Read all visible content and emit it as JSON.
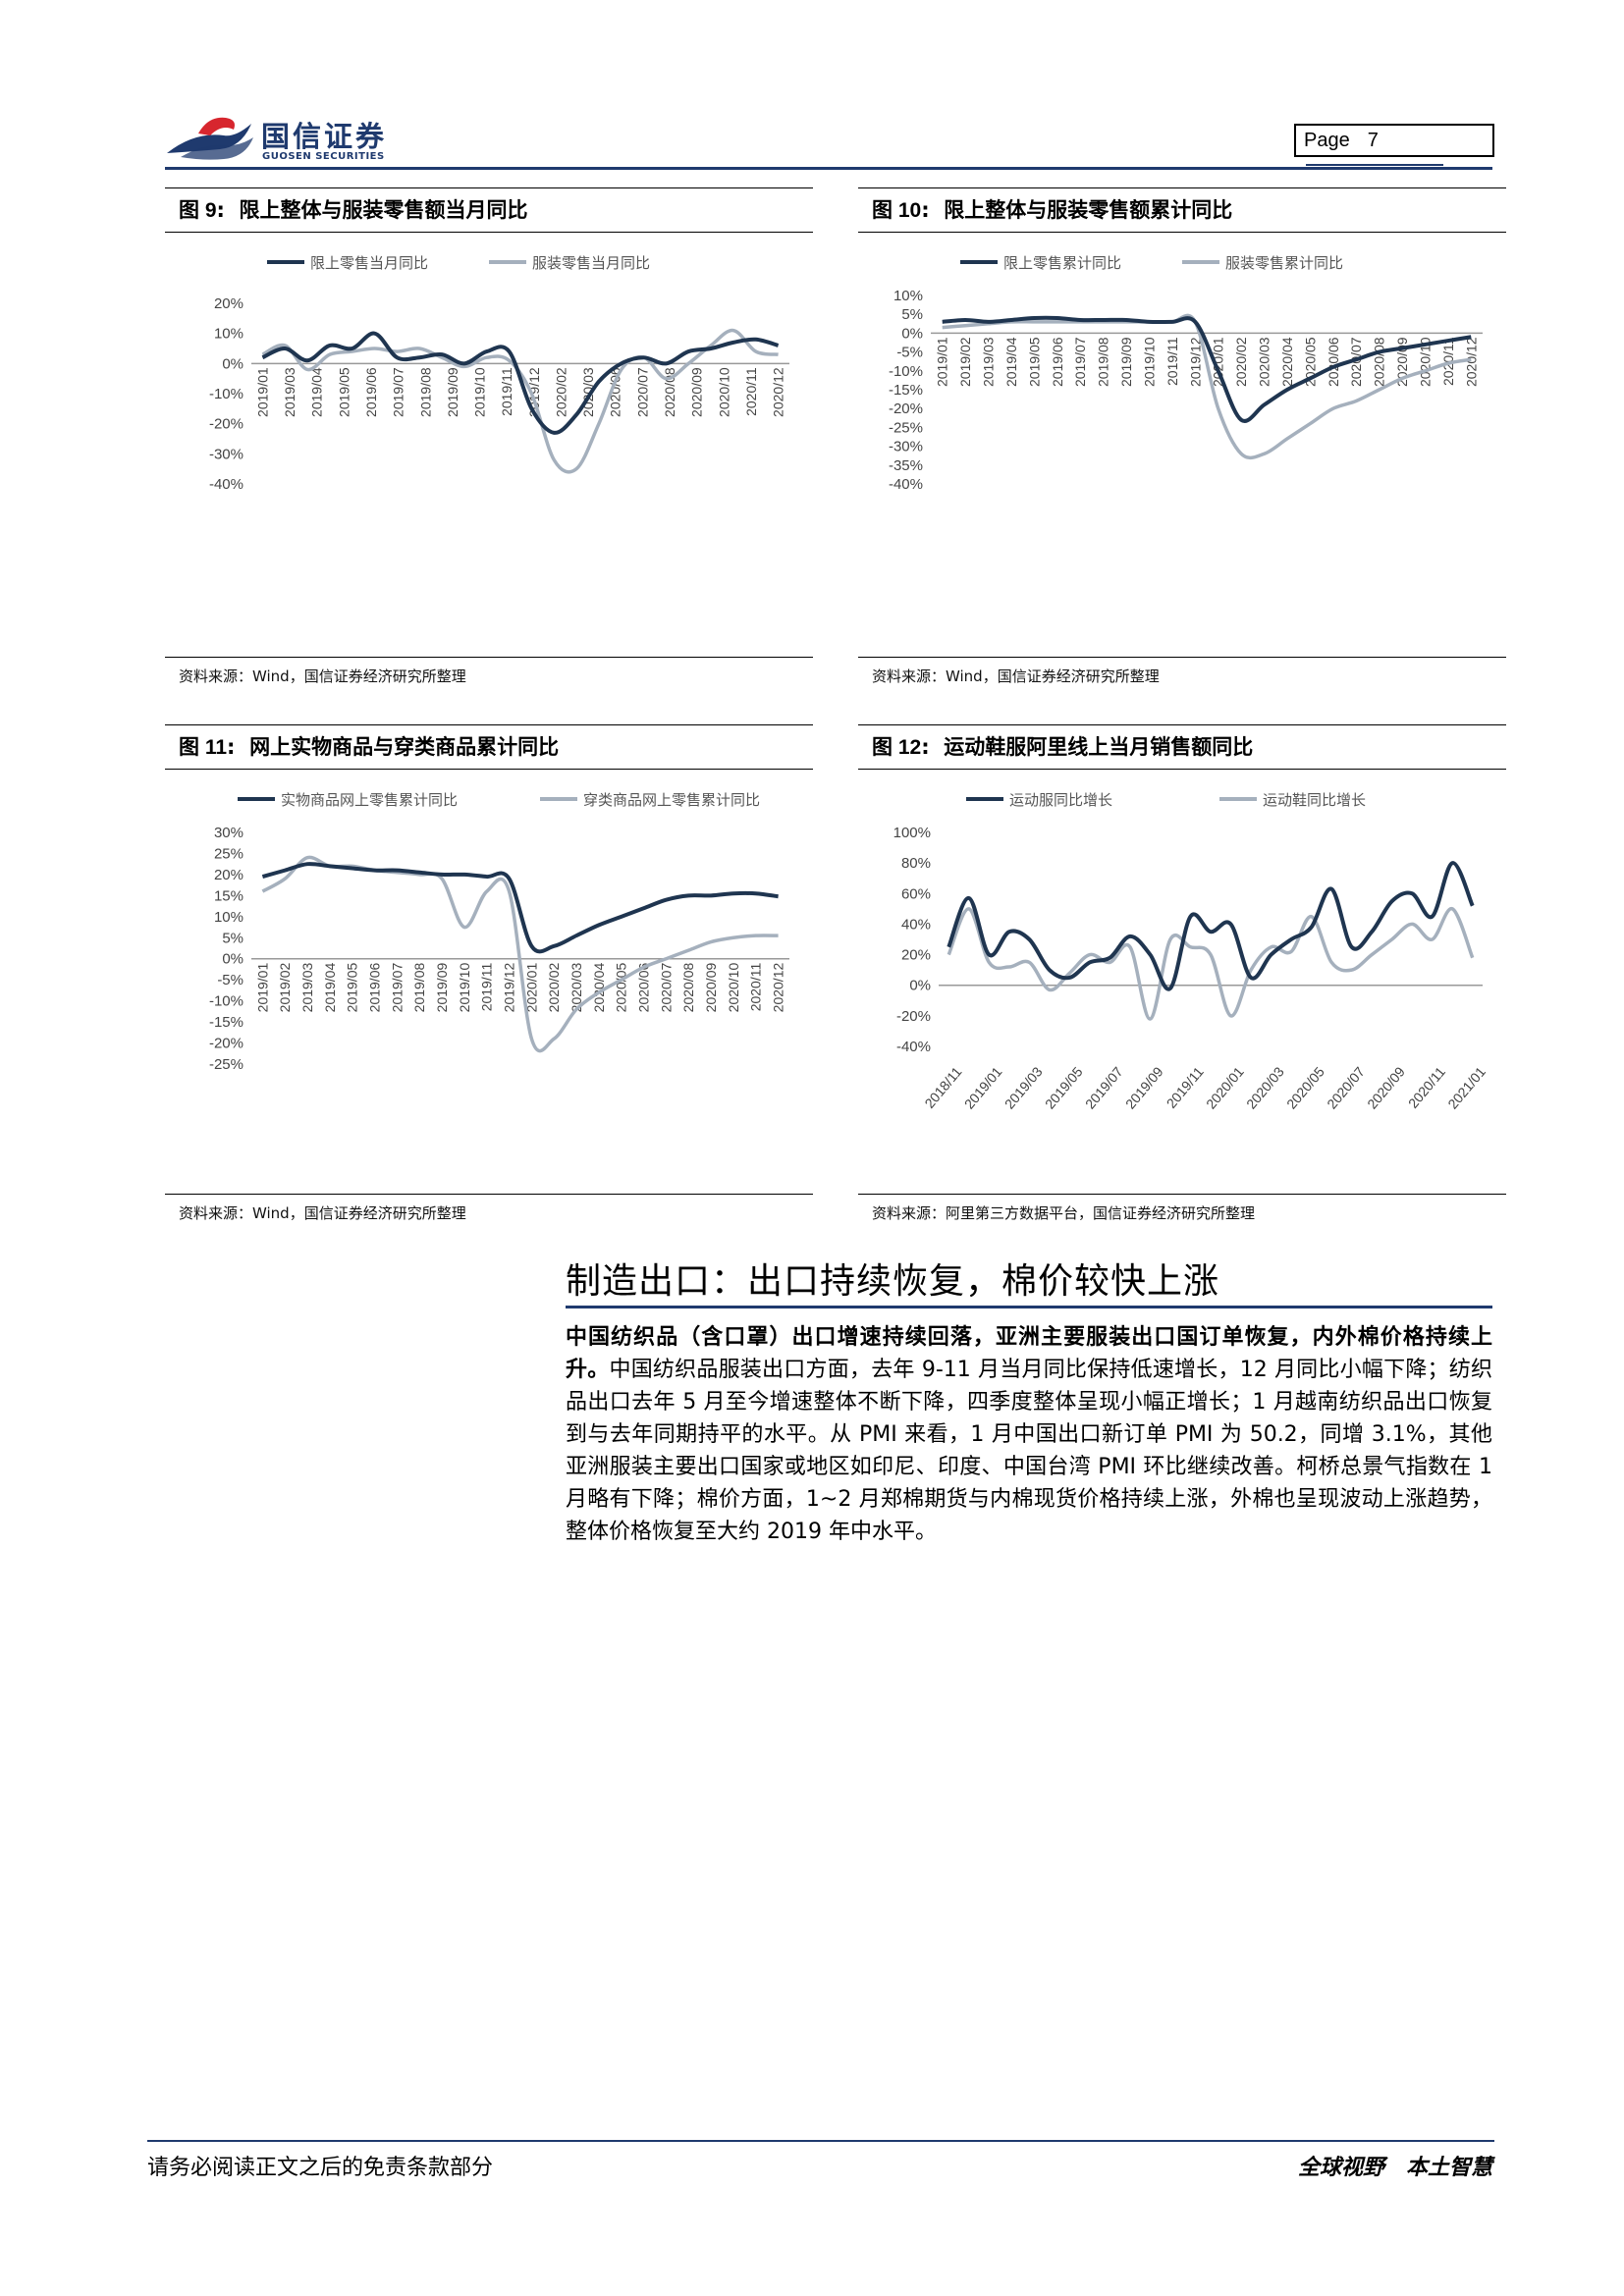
{
  "header": {
    "logo_cn": "国信证券",
    "logo_en": "GUOSEN SECURITIES",
    "page_label": "Page",
    "page_number": "7"
  },
  "colors": {
    "dark_series": "#1f3550",
    "light_series": "#a5b0bd",
    "brand": "#1f3a6e",
    "logo_red": "#d7262e"
  },
  "figures": [
    {
      "number": "图 9",
      "title": "限上整体与服装零售额当月同比",
      "source": "资料来源：Wind，国信证券经济研究所整理",
      "chart_data": {
        "type": "line",
        "categories": [
          "2019/01",
          "2019/02",
          "2019/03",
          "2019/04",
          "2019/05",
          "2019/06",
          "2019/07",
          "2019/08",
          "2019/09",
          "2019/10",
          "2019/11",
          "2019/12",
          "2020/01",
          "2020/02",
          "2020/03",
          "2020/04",
          "2020/05",
          "2020/06",
          "2020/07",
          "2020/08",
          "2020/09",
          "2020/10",
          "2020/11",
          "2020/12"
        ],
        "tick_labels": [
          "2019/01",
          "2019/03",
          "2019/04",
          "2019/05",
          "2019/06",
          "2019/07",
          "2019/08",
          "2019/09",
          "2019/10",
          "2019/11",
          "2019/12",
          "2020/02",
          "2020/03",
          "2020/06",
          "2020/07",
          "2020/08",
          "2020/09",
          "2020/10",
          "2020/11",
          "2020/12"
        ],
        "series": [
          {
            "name": "限上零售当月同比",
            "values": [
              2,
              5,
              1,
              6,
              5,
              10,
              2,
              2,
              3,
              0,
              4,
              4,
              -15,
              -23,
              -17,
              -6,
              0,
              2,
              0,
              4,
              5,
              7,
              8,
              6
            ]
          },
          {
            "name": "服装零售当月同比",
            "values": [
              3,
              6,
              -2,
              3,
              4,
              5,
              4,
              5,
              2,
              -1,
              2,
              1,
              -10,
              -32,
              -35,
              -20,
              -2,
              2,
              -5,
              0,
              6,
              11,
              4,
              3
            ]
          }
        ],
        "ylim": [
          -40,
          20
        ],
        "yticks": [
          -40,
          -30,
          -20,
          -10,
          0,
          10,
          20
        ],
        "ytick_labels": [
          "-40%",
          "-30%",
          "-20%",
          "-10%",
          "0%",
          "10%",
          "20%"
        ],
        "legend": "top"
      }
    },
    {
      "number": "图 10",
      "title": "限上整体与服装零售额累计同比",
      "source": "资料来源：Wind，国信证券经济研究所整理",
      "chart_data": {
        "type": "line",
        "categories": [
          "2019/01",
          "2019/02",
          "2019/03",
          "2019/04",
          "2019/05",
          "2019/06",
          "2019/07",
          "2019/08",
          "2019/09",
          "2019/10",
          "2019/11",
          "2019/12",
          "2020/01",
          "2020/02",
          "2020/03",
          "2020/04",
          "2020/05",
          "2020/06",
          "2020/07",
          "2020/08",
          "2020/09",
          "2020/10",
          "2020/11",
          "2020/12"
        ],
        "tick_labels": [
          "2019/01",
          "2019/02",
          "2019/03",
          "2019/04",
          "2019/05",
          "2019/06",
          "2019/07",
          "2019/08",
          "2019/09",
          "2019/10",
          "2019/11",
          "2019/12",
          "2020/01",
          "2020/02",
          "2020/03",
          "2020/04",
          "2020/05",
          "2020/06",
          "2020/07",
          "2020/08",
          "2020/09",
          "2020/10",
          "2020/11",
          "2020/12"
        ],
        "series": [
          {
            "name": "限上零售累计同比",
            "values": [
              3,
              3.5,
              3,
              3.5,
              4,
              4,
              3.5,
              3.5,
              3.5,
              3,
              3,
              3,
              -10,
              -23,
              -19,
              -15,
              -12,
              -9,
              -7,
              -5,
              -4,
              -3,
              -2,
              -1
            ]
          },
          {
            "name": "服装零售累计同比",
            "values": [
              1.5,
              2,
              2.5,
              3,
              3,
              3,
              3,
              3,
              3,
              3,
              3,
              3,
              -20,
              -32,
              -32,
              -28,
              -24,
              -20,
              -18,
              -15,
              -12,
              -10,
              -8,
              -7
            ]
          }
        ],
        "ylim": [
          -40,
          10
        ],
        "yticks": [
          -40,
          -35,
          -30,
          -25,
          -20,
          -15,
          -10,
          -5,
          0,
          5,
          10
        ],
        "ytick_labels": [
          "-40%",
          "-35%",
          "-30%",
          "-25%",
          "-20%",
          "-15%",
          "-10%",
          "-5%",
          "0%",
          "5%",
          "10%"
        ],
        "legend": "top"
      }
    },
    {
      "number": "图 11",
      "title": "网上实物商品与穿类商品累计同比",
      "source": "资料来源：Wind，国信证券经济研究所整理",
      "chart_data": {
        "type": "line",
        "categories": [
          "2019/01",
          "2019/02",
          "2019/03",
          "2019/04",
          "2019/05",
          "2019/06",
          "2019/07",
          "2019/08",
          "2019/09",
          "2019/10",
          "2019/11",
          "2019/12",
          "2020/01",
          "2020/02",
          "2020/03",
          "2020/04",
          "2020/05",
          "2020/06",
          "2020/07",
          "2020/08",
          "2020/09",
          "2020/10",
          "2020/11",
          "2020/12"
        ],
        "tick_labels": [
          "2019/01",
          "2019/02",
          "2019/03",
          "2019/04",
          "2019/05",
          "2019/06",
          "2019/07",
          "2019/08",
          "2019/09",
          "2019/10",
          "2019/11",
          "2019/12",
          "2020/01",
          "2020/02",
          "2020/03",
          "2020/04",
          "2020/05",
          "2020/06",
          "2020/07",
          "2020/08",
          "2020/09",
          "2020/10",
          "2020/11",
          "2020/12"
        ],
        "series": [
          {
            "name": "实物商品网上零售累计同比",
            "values": [
              19.5,
              21,
              22.5,
              22,
              21.5,
              21,
              21,
              20.5,
              20,
              20,
              19.5,
              19,
              3,
              3,
              5.5,
              8,
              10,
              12,
              14,
              15,
              15,
              15.5,
              15.5,
              14.8
            ]
          },
          {
            "name": "穿类商品网上零售累计同比",
            "values": [
              16,
              19,
              24,
              22,
              22,
              21,
              20.5,
              20,
              19,
              7.5,
              16,
              16,
              -19,
              -19,
              -12,
              -8,
              -5,
              -2,
              0,
              2,
              4,
              5,
              5.5,
              5.5
            ]
          }
        ],
        "ylim": [
          -25,
          30
        ],
        "yticks": [
          -25,
          -20,
          -15,
          -10,
          -5,
          0,
          5,
          10,
          15,
          20,
          25,
          30
        ],
        "ytick_labels": [
          "-25%",
          "-20%",
          "-15%",
          "-10%",
          "-5%",
          "0%",
          "5%",
          "10%",
          "15%",
          "20%",
          "25%",
          "30%"
        ],
        "legend": "top"
      }
    },
    {
      "number": "图 12",
      "title": "运动鞋服阿里线上当月销售额同比",
      "source": "资料来源：阿里第三方数据平台，国信证券经济研究所整理",
      "chart_data": {
        "type": "line",
        "categories": [
          "2018/11",
          "2018/12",
          "2019/01",
          "2019/02",
          "2019/03",
          "2019/04",
          "2019/05",
          "2019/06",
          "2019/07",
          "2019/08",
          "2019/09",
          "2019/10",
          "2019/11",
          "2019/12",
          "2020/01",
          "2020/02",
          "2020/03",
          "2020/04",
          "2020/05",
          "2020/06",
          "2020/07",
          "2020/08",
          "2020/09",
          "2020/10",
          "2020/11",
          "2020/12",
          "2021/01"
        ],
        "tick_labels": [
          "2018/11",
          "2019/01",
          "2019/03",
          "2019/05",
          "2019/07",
          "2019/09",
          "2019/11",
          "2020/01",
          "2020/03",
          "2020/05",
          "2020/07",
          "2020/09",
          "2020/11",
          "2021/01"
        ],
        "series": [
          {
            "name": "运动服同比增长",
            "values": [
              25,
              57,
              20,
              35,
              30,
              10,
              5,
              15,
              18,
              32,
              20,
              -2,
              45,
              35,
              40,
              5,
              20,
              30,
              38,
              63,
              25,
              35,
              55,
              60,
              45,
              80,
              52
            ]
          },
          {
            "name": "运动鞋同比增长",
            "values": [
              20,
              50,
              15,
              12,
              15,
              -3,
              8,
              20,
              15,
              25,
              -22,
              30,
              25,
              20,
              -20,
              10,
              25,
              22,
              45,
              15,
              10,
              20,
              30,
              40,
              30,
              50,
              18
            ]
          }
        ],
        "ylim": [
          -40,
          100
        ],
        "yticks": [
          -40,
          -20,
          0,
          20,
          40,
          60,
          80,
          100
        ],
        "ytick_labels": [
          "-40%",
          "-20%",
          "0%",
          "20%",
          "40%",
          "60%",
          "80%",
          "100%"
        ],
        "legend": "top"
      }
    }
  ],
  "section": {
    "title": "制造出口：出口持续恢复，棉价较快上涨",
    "lead": "中国纺织品（含口罩）出口增速持续回落，亚洲主要服装出口国订单恢复，内外棉价格持续上升。",
    "body": "中国纺织品服装出口方面，去年 9-11 月当月同比保持低速增长，12 月同比小幅下降；纺织品出口去年 5 月至今增速整体不断下降，四季度整体呈现小幅正增长；1 月越南纺织品出口恢复到与去年同期持平的水平。从 PMI 来看，1 月中国出口新订单 PMI 为 50.2，同增 3.1%，其他亚洲服装主要出口国家或地区如印尼、印度、中国台湾 PMI 环比继续改善。柯桥总景气指数在 1 月略有下降；棉价方面，1~2 月郑棉期货与内棉现货价格持续上涨，外棉也呈现波动上涨趋势，整体价格恢复至大约 2019 年中水平。"
  },
  "footer": {
    "disclaimer": "请务必阅读正文之后的免责条款部分",
    "slogan": "全球视野　本土智慧"
  }
}
